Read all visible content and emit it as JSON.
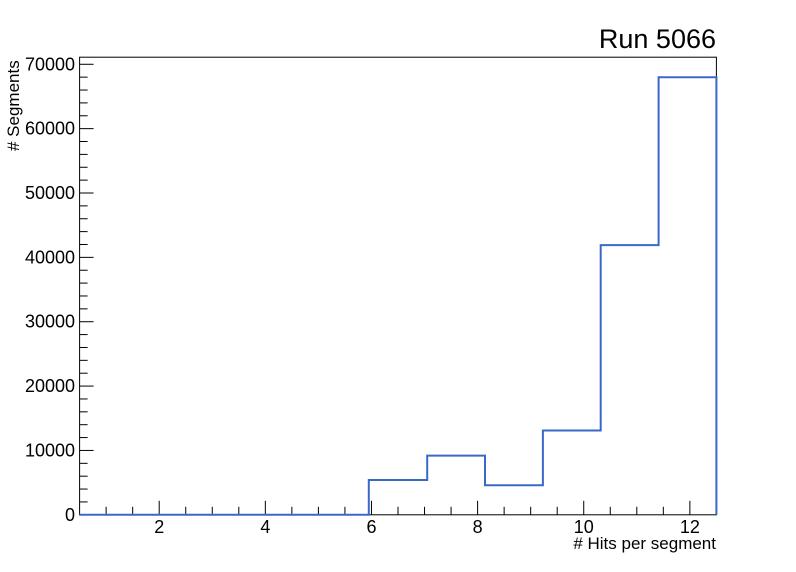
{
  "title": "Run 5066",
  "axes": {
    "x_title": "# Hits per segment",
    "y_title": "# Segments"
  },
  "chart_data": {
    "type": "bar",
    "style": "step-histogram",
    "title": "Run 5066",
    "xlabel": "# Hits per segment",
    "ylabel": "# Segments",
    "xlim": [
      0.5,
      12.5
    ],
    "ylim": [
      0,
      71100
    ],
    "bin_edges": [
      0.5,
      1.59,
      2.68,
      3.77,
      4.86,
      5.95,
      7.05,
      8.14,
      9.23,
      10.32,
      11.41,
      12.5
    ],
    "counts": [
      0,
      0,
      0,
      0,
      0,
      5400,
      9200,
      4600,
      13100,
      41900,
      68000
    ],
    "x_major_ticks": [
      2,
      4,
      6,
      8,
      10,
      12
    ],
    "x_tick_labels": [
      "2",
      "4",
      "6",
      "8",
      "10",
      "12"
    ],
    "x_minor_step": 0.5,
    "y_major_ticks": [
      0,
      10000,
      20000,
      30000,
      40000,
      50000,
      60000,
      70000
    ],
    "y_tick_labels": [
      "0",
      "10000",
      "20000",
      "30000",
      "40000",
      "50000",
      "60000",
      "70000"
    ],
    "y_minor_step": 2000,
    "grid": false,
    "legend": null,
    "line_color": "#3a68c9",
    "frame_color": "#000000",
    "background_color": "#ffffff"
  }
}
